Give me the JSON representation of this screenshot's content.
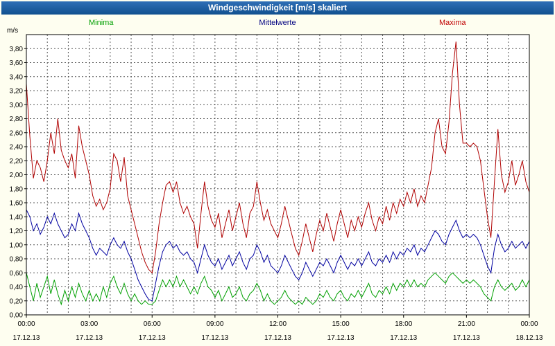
{
  "window": {
    "title": "Windgeschwindigkeit [m/s] skaliert"
  },
  "colors": {
    "title_bar": "#15579B",
    "page_background": "#FEFEF0",
    "plot_background": "#FFFFFF",
    "grid": "#555555",
    "minima": "#00A000",
    "mittelwerte": "#0000A0",
    "maxima": "#B00000"
  },
  "legend": {
    "items": [
      {
        "label": "Minima",
        "color": "#00A000"
      },
      {
        "label": "Mittelwerte",
        "color": "#000080"
      },
      {
        "label": "Maxima",
        "color": "#C00000"
      }
    ]
  },
  "chart_data": {
    "type": "line",
    "title": "Windgeschwindigkeit [m/s] skaliert",
    "unit_label": "m/s",
    "ylim": [
      0,
      4.0
    ],
    "x_hours": 24,
    "sample_interval_minutes": 10,
    "grid": {
      "vertical_every_hours": 1,
      "horizontal_step": 0.2,
      "style": "dashed"
    },
    "y_ticks": [
      {
        "v": 0,
        "label": "0,00"
      },
      {
        "v": 0.2,
        "label": "0,20"
      },
      {
        "v": 0.4,
        "label": "0,40"
      },
      {
        "v": 0.6,
        "label": "0,60"
      },
      {
        "v": 0.8,
        "label": "0,80"
      },
      {
        "v": 1,
        "label": "1,00"
      },
      {
        "v": 1.2,
        "label": "1,20"
      },
      {
        "v": 1.4,
        "label": "1,40"
      },
      {
        "v": 1.6,
        "label": "1,60"
      },
      {
        "v": 1.8,
        "label": "1,80"
      },
      {
        "v": 2,
        "label": "2,00"
      },
      {
        "v": 2.2,
        "label": "2,20"
      },
      {
        "v": 2.4,
        "label": "2,40"
      },
      {
        "v": 2.6,
        "label": "2,60"
      },
      {
        "v": 2.8,
        "label": "2,80"
      },
      {
        "v": 3,
        "label": "3,00"
      },
      {
        "v": 3.2,
        "label": "3,20"
      },
      {
        "v": 3.4,
        "label": "3,40"
      },
      {
        "v": 3.6,
        "label": "3,60"
      },
      {
        "v": 3.8,
        "label": "3,80"
      }
    ],
    "x_ticks": [
      {
        "hour": 0,
        "time": "00:00",
        "date": "17.12.13"
      },
      {
        "hour": 3,
        "time": "03:00",
        "date": "17.12.13"
      },
      {
        "hour": 6,
        "time": "06:00",
        "date": "17.12.13"
      },
      {
        "hour": 9,
        "time": "09:00",
        "date": "17.12.13"
      },
      {
        "hour": 12,
        "time": "12:00",
        "date": "17.12.13"
      },
      {
        "hour": 15,
        "time": "15:00",
        "date": "17.12.13"
      },
      {
        "hour": 18,
        "time": "18:00",
        "date": "17.12.13"
      },
      {
        "hour": 21,
        "time": "21:00",
        "date": "17.12.13"
      },
      {
        "hour": 24,
        "time": "00:00",
        "date": "18.12.13"
      }
    ],
    "series": [
      {
        "name": "Minima",
        "color": "#00A000",
        "values": [
          0.6,
          0.4,
          0.2,
          0.45,
          0.25,
          0.4,
          0.55,
          0.3,
          0.5,
          0.3,
          0.15,
          0.35,
          0.2,
          0.4,
          0.25,
          0.45,
          0.3,
          0.2,
          0.35,
          0.2,
          0.3,
          0.2,
          0.4,
          0.25,
          0.45,
          0.55,
          0.4,
          0.3,
          0.45,
          0.3,
          0.2,
          0.3,
          0.2,
          0.15,
          0.2,
          0.15,
          0.15,
          0.2,
          0.35,
          0.5,
          0.4,
          0.5,
          0.4,
          0.55,
          0.4,
          0.5,
          0.4,
          0.3,
          0.4,
          0.3,
          0.45,
          0.55,
          0.4,
          0.35,
          0.25,
          0.35,
          0.2,
          0.3,
          0.4,
          0.25,
          0.3,
          0.4,
          0.25,
          0.2,
          0.3,
          0.35,
          0.45,
          0.35,
          0.2,
          0.3,
          0.2,
          0.15,
          0.2,
          0.25,
          0.35,
          0.25,
          0.2,
          0.15,
          0.2,
          0.15,
          0.25,
          0.2,
          0.15,
          0.2,
          0.3,
          0.25,
          0.35,
          0.25,
          0.2,
          0.3,
          0.35,
          0.25,
          0.2,
          0.3,
          0.25,
          0.35,
          0.25,
          0.35,
          0.45,
          0.3,
          0.25,
          0.35,
          0.3,
          0.4,
          0.3,
          0.45,
          0.35,
          0.45,
          0.4,
          0.5,
          0.4,
          0.5,
          0.4,
          0.45,
          0.4,
          0.5,
          0.55,
          0.6,
          0.55,
          0.5,
          0.45,
          0.55,
          0.6,
          0.55,
          0.5,
          0.45,
          0.5,
          0.45,
          0.5,
          0.45,
          0.4,
          0.3,
          0.25,
          0.2,
          0.4,
          0.5,
          0.4,
          0.35,
          0.4,
          0.45,
          0.35,
          0.4,
          0.5,
          0.4,
          0.5
        ]
      },
      {
        "name": "Mittelwerte",
        "color": "#0000A0",
        "values": [
          1.5,
          1.4,
          1.2,
          1.3,
          1.15,
          1.25,
          1.4,
          1.3,
          1.45,
          1.3,
          1.2,
          1.1,
          1.15,
          1.3,
          1.2,
          1.45,
          1.3,
          1.2,
          1.1,
          0.95,
          0.85,
          0.95,
          0.9,
          0.85,
          1.0,
          1.1,
          1.0,
          0.95,
          1.05,
          0.9,
          0.8,
          0.65,
          0.5,
          0.4,
          0.3,
          0.22,
          0.2,
          0.45,
          0.7,
          0.9,
          1.0,
          1.05,
          0.95,
          1.0,
          0.9,
          0.85,
          0.9,
          0.8,
          0.75,
          0.6,
          0.8,
          1.0,
          0.85,
          0.75,
          0.7,
          0.8,
          0.65,
          0.75,
          0.85,
          0.7,
          0.8,
          0.9,
          0.75,
          0.65,
          0.8,
          0.85,
          1.0,
          0.9,
          0.75,
          0.85,
          0.7,
          0.65,
          0.6,
          0.7,
          0.85,
          0.75,
          0.65,
          0.55,
          0.5,
          0.6,
          0.75,
          0.65,
          0.55,
          0.65,
          0.75,
          0.7,
          0.8,
          0.7,
          0.6,
          0.75,
          0.85,
          0.75,
          0.65,
          0.75,
          0.7,
          0.8,
          0.7,
          0.8,
          0.9,
          0.75,
          0.7,
          0.8,
          0.75,
          0.85,
          0.75,
          0.9,
          0.8,
          0.9,
          0.85,
          0.95,
          0.9,
          1.0,
          0.85,
          0.95,
          0.9,
          1.0,
          1.1,
          1.2,
          1.15,
          1.05,
          1.0,
          1.15,
          1.25,
          1.35,
          1.2,
          1.1,
          1.15,
          1.1,
          1.15,
          1.1,
          1.0,
          0.85,
          0.7,
          0.6,
          0.95,
          1.15,
          1.0,
          0.9,
          0.95,
          1.05,
          0.95,
          1.0,
          1.05,
          0.95,
          1.05
        ]
      },
      {
        "name": "Maxima",
        "color": "#B00000",
        "values": [
          3.3,
          2.55,
          1.95,
          2.2,
          2.1,
          1.9,
          2.2,
          2.6,
          2.3,
          2.8,
          2.35,
          2.2,
          2.1,
          2.3,
          1.95,
          2.7,
          2.4,
          2.2,
          2.0,
          1.7,
          1.55,
          1.65,
          1.5,
          1.6,
          1.8,
          2.3,
          2.2,
          1.9,
          2.25,
          1.7,
          1.5,
          1.3,
          1.1,
          0.9,
          0.75,
          0.65,
          0.6,
          0.9,
          1.3,
          1.6,
          1.85,
          1.9,
          1.75,
          1.9,
          1.6,
          1.45,
          1.55,
          1.4,
          1.3,
          0.95,
          1.45,
          1.9,
          1.55,
          1.35,
          1.25,
          1.45,
          1.1,
          1.3,
          1.5,
          1.2,
          1.4,
          1.6,
          1.3,
          1.1,
          1.45,
          1.55,
          1.9,
          1.6,
          1.35,
          1.5,
          1.3,
          1.2,
          1.1,
          1.3,
          1.55,
          1.35,
          1.15,
          0.95,
          0.85,
          1.05,
          1.3,
          1.1,
          0.9,
          1.15,
          1.35,
          1.2,
          1.45,
          1.25,
          1.05,
          1.3,
          1.5,
          1.3,
          1.1,
          1.35,
          1.2,
          1.4,
          1.25,
          1.45,
          1.6,
          1.35,
          1.2,
          1.4,
          1.3,
          1.55,
          1.35,
          1.6,
          1.45,
          1.65,
          1.55,
          1.75,
          1.6,
          1.8,
          1.55,
          1.7,
          1.6,
          1.85,
          2.1,
          2.6,
          2.8,
          2.4,
          2.3,
          2.75,
          3.45,
          3.9,
          3.0,
          2.45,
          2.45,
          2.4,
          2.45,
          2.4,
          2.2,
          1.8,
          1.4,
          1.1,
          1.9,
          2.65,
          2.0,
          1.75,
          1.9,
          2.2,
          1.85,
          2.0,
          2.2,
          1.9,
          1.75
        ]
      }
    ]
  }
}
